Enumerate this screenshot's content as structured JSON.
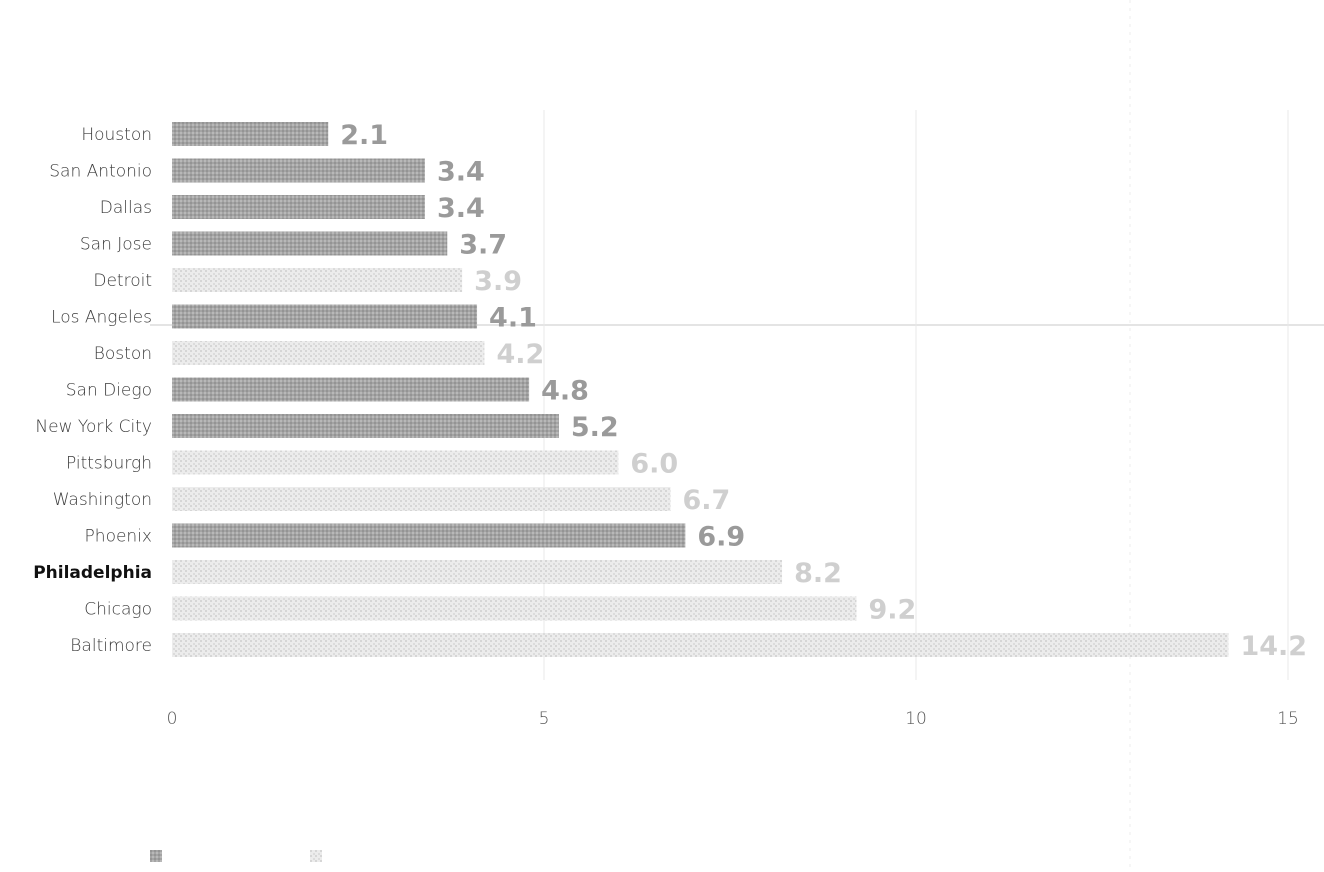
{
  "chart_data": {
    "type": "bar",
    "orientation": "horizontal",
    "title": "",
    "xlabel": "",
    "ylabel": "",
    "xlim": [
      0,
      15
    ],
    "xticks": [
      0,
      5,
      10,
      15
    ],
    "highlight_category": "Philadelphia",
    "categories": [
      "Houston",
      "San Antonio",
      "Dallas",
      "San Jose",
      "Detroit",
      "Los Angeles",
      "Boston",
      "San Diego",
      "New York City",
      "Pittsburgh",
      "Washington",
      "Phoenix",
      "Philadelphia",
      "Chicago",
      "Baltimore"
    ],
    "values": [
      2.1,
      3.4,
      3.4,
      3.7,
      3.9,
      4.1,
      4.2,
      4.8,
      5.2,
      6.0,
      6.7,
      6.9,
      8.2,
      9.2,
      14.2
    ],
    "value_labels": [
      "2.1",
      "3.4",
      "3.4",
      "3.7",
      "3.9",
      "4.1",
      "4.2",
      "4.8",
      "5.2",
      "6.0",
      "6.7",
      "6.9",
      "8.2",
      "9.2",
      "14.2"
    ],
    "bar_style": [
      "solid",
      "solid",
      "solid",
      "solid",
      "faded",
      "solid",
      "faded",
      "solid",
      "solid",
      "faded",
      "faded",
      "solid",
      "faded",
      "faded",
      "faded"
    ],
    "colors": {
      "solid_bar": "#a8a8a8",
      "faded_bar": "#e2e2e2",
      "solid_label": "#9a9a9a",
      "faded_label": "#cfcfcf",
      "grid": "#e8e8e8",
      "reference_line": "#c4c4c4"
    },
    "legend": {
      "position": "bottom-left",
      "items": [
        {
          "style": "solid",
          "label": ""
        },
        {
          "style": "faded",
          "label": ""
        }
      ]
    },
    "grid": true
  }
}
